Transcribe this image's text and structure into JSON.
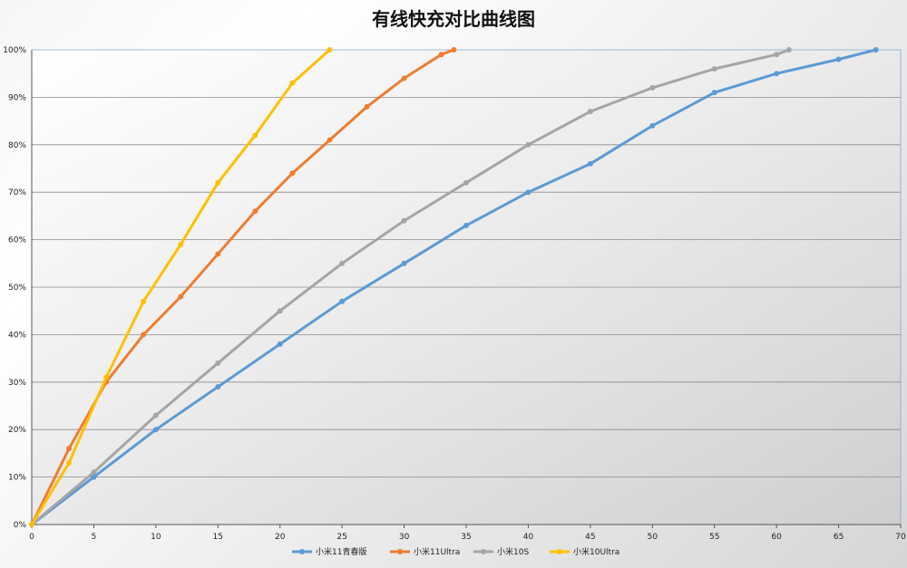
{
  "chart_data": {
    "type": "line",
    "title": "有线快充对比曲线图",
    "xlabel": "",
    "ylabel": "",
    "xlim": [
      0,
      70
    ],
    "ylim": [
      0,
      100
    ],
    "x_ticks": [
      0,
      5,
      10,
      15,
      20,
      25,
      30,
      35,
      40,
      45,
      50,
      55,
      60,
      65,
      70
    ],
    "y_ticks": [
      0,
      10,
      20,
      30,
      40,
      50,
      60,
      70,
      80,
      90,
      100
    ],
    "y_tick_labels": [
      "0%",
      "10%",
      "20%",
      "30%",
      "40%",
      "50%",
      "60%",
      "70%",
      "80%",
      "90%",
      "100%"
    ],
    "grid": "horizontal",
    "legend_position": "bottom",
    "series": [
      {
        "name": "小米11青春版",
        "color": "#5b9bd5",
        "points": [
          [
            0,
            0
          ],
          [
            5,
            10
          ],
          [
            10,
            20
          ],
          [
            15,
            29
          ],
          [
            20,
            38
          ],
          [
            25,
            47
          ],
          [
            30,
            55
          ],
          [
            35,
            63
          ],
          [
            40,
            70
          ],
          [
            45,
            76
          ],
          [
            50,
            84
          ],
          [
            55,
            91
          ],
          [
            60,
            95
          ],
          [
            65,
            98
          ],
          [
            68,
            100
          ]
        ]
      },
      {
        "name": "小米11Ultra",
        "color": "#ed7d31",
        "points": [
          [
            0,
            0
          ],
          [
            3,
            16
          ],
          [
            6,
            30
          ],
          [
            9,
            40
          ],
          [
            12,
            48
          ],
          [
            15,
            57
          ],
          [
            18,
            66
          ],
          [
            21,
            74
          ],
          [
            24,
            81
          ],
          [
            27,
            88
          ],
          [
            30,
            94
          ],
          [
            33,
            99
          ],
          [
            34,
            100
          ]
        ]
      },
      {
        "name": "小米10S",
        "color": "#a5a5a5",
        "points": [
          [
            0,
            0
          ],
          [
            5,
            11
          ],
          [
            10,
            23
          ],
          [
            15,
            34
          ],
          [
            20,
            45
          ],
          [
            25,
            55
          ],
          [
            30,
            64
          ],
          [
            35,
            72
          ],
          [
            40,
            80
          ],
          [
            45,
            87
          ],
          [
            50,
            92
          ],
          [
            55,
            96
          ],
          [
            60,
            99
          ],
          [
            61,
            100
          ]
        ]
      },
      {
        "name": "小米10Ultra",
        "color": "#ffc000",
        "points": [
          [
            0,
            0
          ],
          [
            3,
            13
          ],
          [
            6,
            31
          ],
          [
            9,
            47
          ],
          [
            12,
            59
          ],
          [
            15,
            72
          ],
          [
            18,
            82
          ],
          [
            21,
            93
          ],
          [
            24,
            100
          ]
        ]
      }
    ]
  }
}
